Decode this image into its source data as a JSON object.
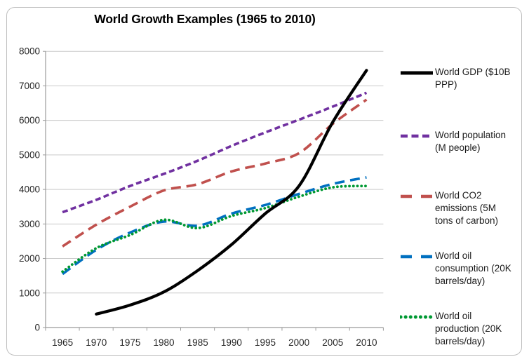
{
  "title": "World Growth Examples (1965 to 2010)",
  "chart_data": {
    "type": "line",
    "x": [
      1965,
      1970,
      1975,
      1980,
      1985,
      1990,
      1995,
      2000,
      2005,
      2010
    ],
    "xlabel": "",
    "ylabel": "",
    "ylim": [
      0,
      8000
    ],
    "ytick_interval": 1000,
    "grid": true,
    "legend_position": "right",
    "series": [
      {
        "id": "gdp",
        "name": "World GDP ($10B PPP)",
        "color": "#000000",
        "line_style": "solid",
        "values": [
          null,
          390,
          650,
          1030,
          1650,
          2400,
          3300,
          4100,
          5950,
          7450
        ]
      },
      {
        "id": "population",
        "name": "World population (M people)",
        "color": "#7030A0",
        "line_style": "dashed",
        "values": [
          3340,
          3700,
          4100,
          4450,
          4830,
          5260,
          5650,
          6020,
          6400,
          6800
        ]
      },
      {
        "id": "co2-emissions",
        "name": "World CO2 emissions (5M tons of carbon)",
        "color": "#C0504D",
        "line_style": "long-dashed",
        "values": [
          2350,
          2980,
          3500,
          3970,
          4150,
          4520,
          4750,
          5050,
          5900,
          6600
        ]
      },
      {
        "id": "oil-consumption",
        "name": "World oil consumption (20K barrels/day)",
        "color": "#0070C0",
        "line_style": "long-dashed",
        "values": [
          1550,
          2250,
          2750,
          3070,
          2950,
          3300,
          3550,
          3870,
          4160,
          4350
        ]
      },
      {
        "id": "oil-production",
        "name": "World oil production (20K barrels/day)",
        "color": "#009933",
        "line_style": "dotted",
        "values": [
          1620,
          2300,
          2680,
          3120,
          2880,
          3230,
          3460,
          3790,
          4060,
          4100
        ]
      }
    ]
  },
  "axes": {
    "y_tick_labels": [
      "0",
      "1000",
      "2000",
      "3000",
      "4000",
      "5000",
      "6000",
      "7000",
      "8000"
    ],
    "x_tick_labels": [
      "1965",
      "1970",
      "1975",
      "1980",
      "1985",
      "1990",
      "1995",
      "2000",
      "2005",
      "2010"
    ]
  },
  "style_colors": {
    "grid": "#C9C9C9",
    "axis": "#9B9B9B",
    "tick_text": "#262626",
    "border": "#BFBFBF"
  }
}
